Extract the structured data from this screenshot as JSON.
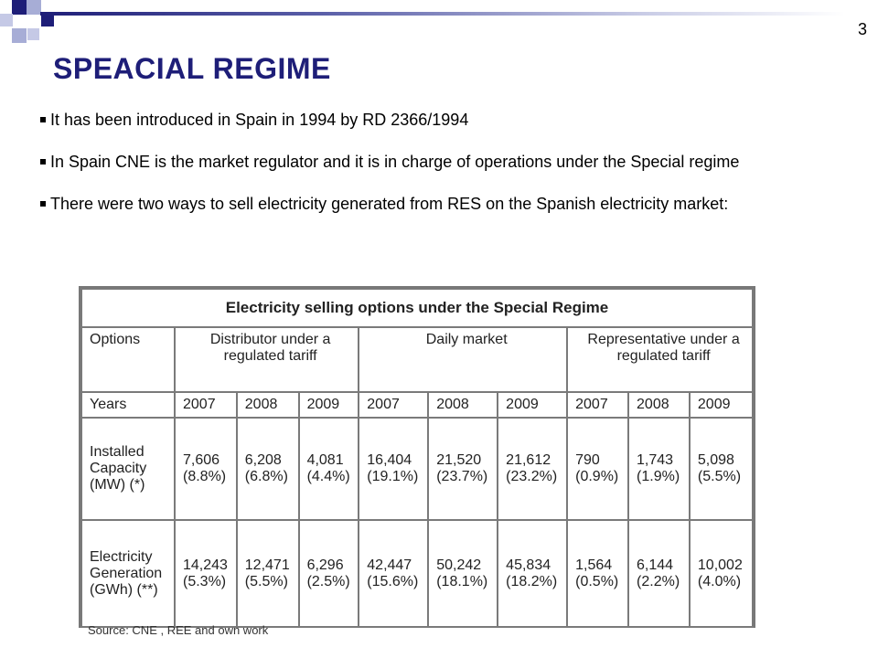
{
  "slide": {
    "page_number": "3",
    "title": "SPEACIAL REGIME",
    "bullets": [
      "It has been introduced in Spain in 1994 by RD 2366/1994",
      "In Spain CNE is the market regulator and it is in charge of operations under the Special regime",
      "There were two ways to sell electricity generated from RES on the Spanish electricity market:"
    ]
  },
  "table": {
    "caption": "Electricity selling options under the Special Regime",
    "options_label": "Options",
    "groups": [
      "Distributor under a\nregulated tariff",
      "Daily market",
      "Representative under a\nregulated tariff"
    ],
    "years_label": "Years",
    "years": [
      "2007",
      "2008",
      "2009",
      "2007",
      "2008",
      "2009",
      "2007",
      "2008",
      "2009"
    ],
    "rows": [
      {
        "label": "Installed\nCapacity\n(MW) (*)",
        "cells": [
          "7,606\n(8.8%)",
          "6,208\n(6.8%)",
          "4,081\n(4.4%)",
          "16,404\n(19.1%)",
          "21,520\n(23.7%)",
          "21,612\n(23.2%)",
          "790\n(0.9%)",
          "1,743\n(1.9%)",
          "5,098\n(5.5%)"
        ]
      },
      {
        "label": "Electricity\nGeneration\n(GWh) (**)",
        "cells": [
          "14,243\n(5.3%)",
          "12,471\n(5.5%)",
          "6,296\n(2.5%)",
          "42,447\n(15.6%)",
          "50,242\n(18.1%)",
          "45,834\n(18.2%)",
          "1,564\n(0.5%)",
          "6,144\n(2.2%)",
          "10,002\n(4.0%)"
        ]
      }
    ],
    "source": "Source: CNE , REE and own work"
  }
}
